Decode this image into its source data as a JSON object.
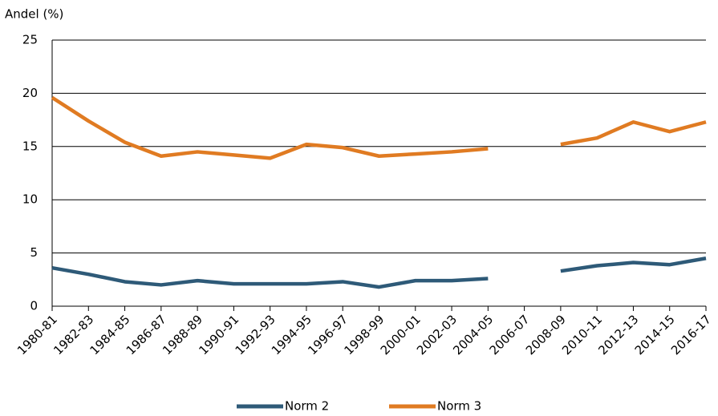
{
  "chart_data": {
    "type": "line",
    "y_label": "Andel (%)",
    "categories": [
      "1980-81",
      "1982-83",
      "1984-85",
      "1986-87",
      "1988-89",
      "1990-91",
      "1992-93",
      "1994-95",
      "1996-97",
      "1998-99",
      "2000-01",
      "2002-03",
      "2004-05",
      "2006-07",
      "2008-09",
      "2010-11",
      "2012-13",
      "2014-15",
      "2016-17"
    ],
    "series": [
      {
        "name": "Norm 2",
        "color": "#2e5a78",
        "values": [
          3.6,
          3.0,
          2.3,
          2.0,
          2.4,
          2.1,
          2.1,
          2.1,
          2.3,
          1.8,
          2.4,
          2.4,
          2.6,
          null,
          3.3,
          3.8,
          4.1,
          3.9,
          4.5
        ]
      },
      {
        "name": "Norm 3",
        "color": "#e07b22",
        "values": [
          19.6,
          17.4,
          15.4,
          14.1,
          14.5,
          14.2,
          13.9,
          15.2,
          14.9,
          14.1,
          14.3,
          14.5,
          14.8,
          null,
          15.2,
          15.8,
          17.3,
          16.4,
          17.3
        ]
      }
    ],
    "ylim": [
      0,
      25
    ],
    "yticks": [
      0,
      5,
      10,
      15,
      20,
      25
    ],
    "grid": true,
    "legend": "bottom"
  }
}
